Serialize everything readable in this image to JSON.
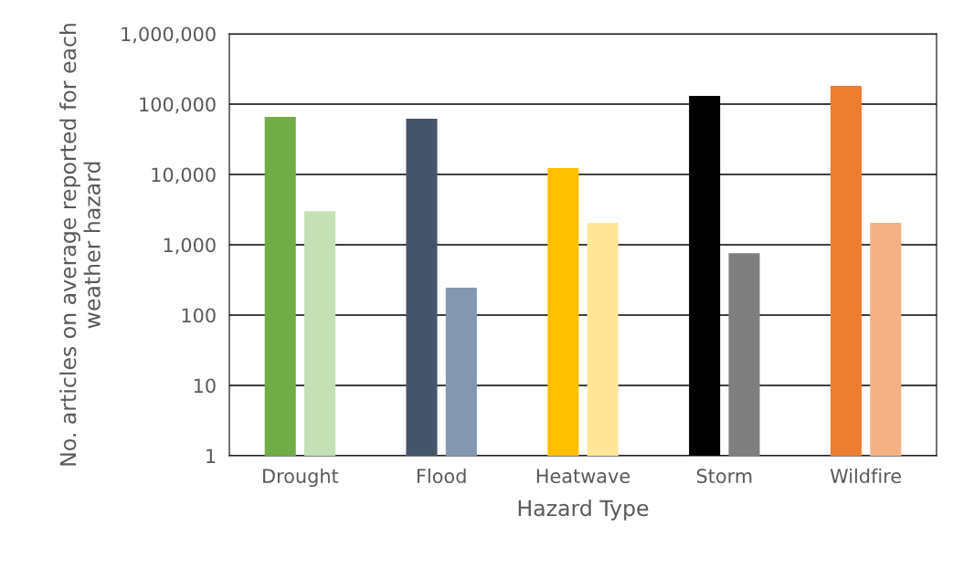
{
  "chart_data": {
    "type": "bar",
    "xlabel": "Hazard Type",
    "ylabel": "No. articles on average reported for each weather hazard",
    "categories": [
      "Drought",
      "Flood",
      "Heatwave",
      "Storm",
      "Wildfire"
    ],
    "series": [
      {
        "colors": [
          "#70ad47",
          "#44546a",
          "#ffc000",
          "#000000",
          "#ed7d31"
        ],
        "values": [
          66000,
          62000,
          12300,
          131000,
          182000
        ]
      },
      {
        "colors": [
          "#c5e0b4",
          "#8497b0",
          "#ffe699",
          "#7f7f7f",
          "#f4b183"
        ],
        "values": [
          3000,
          245,
          2050,
          760,
          2050
        ]
      }
    ],
    "log": true,
    "ylim": [
      1,
      1000000
    ],
    "yticks": [
      {
        "value": 1,
        "label": "1"
      },
      {
        "value": 10,
        "label": "10"
      },
      {
        "value": 100,
        "label": "100"
      },
      {
        "value": 1000,
        "label": "1,000"
      },
      {
        "value": 10000,
        "label": "10,000"
      },
      {
        "value": 100000,
        "label": "100,000"
      },
      {
        "value": 1000000,
        "label": "1,000,000"
      }
    ],
    "grid": "y",
    "legend": false
  }
}
